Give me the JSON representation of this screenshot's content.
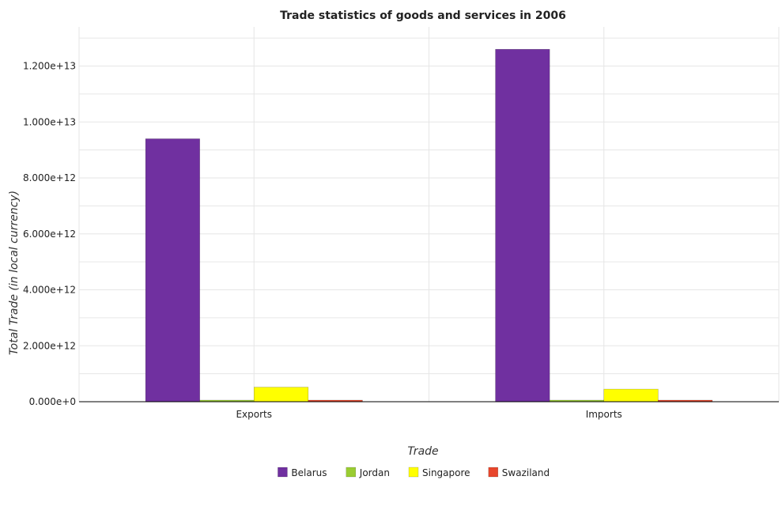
{
  "chart_data": {
    "type": "bar",
    "title": "Trade statistics of goods and services in 2006",
    "xlabel": "Trade",
    "ylabel": "Total Trade (in local currency)",
    "categories": [
      "Exports",
      "Imports"
    ],
    "series": [
      {
        "name": "Belarus",
        "color": "#7030a0",
        "values": [
          9400000000000.0,
          12600000000000.0
        ]
      },
      {
        "name": "Jordan",
        "color": "#9acd32",
        "values": [
          3800000000.0,
          8100000000.0
        ]
      },
      {
        "name": "Singapore",
        "color": "#ffff00",
        "values": [
          520000000000.0,
          450000000000.0
        ]
      },
      {
        "name": "Swaziland",
        "color": "#e8462c",
        "values": [
          19000000000.0,
          21000000000.0
        ]
      }
    ],
    "ylim": [
      0,
      13400000000000.0
    ],
    "yticks": [
      0,
      2000000000000.0,
      4000000000000.0,
      6000000000000.0,
      8000000000000.0,
      10000000000000.0,
      12000000000000.0
    ],
    "ytick_labels": [
      "0.000e+0",
      "2.000e+12",
      "4.000e+12",
      "6.000e+12",
      "8.000e+12",
      "1.000e+13",
      "1.200e+13"
    ],
    "legend_position": "bottom-center",
    "grid": true
  }
}
